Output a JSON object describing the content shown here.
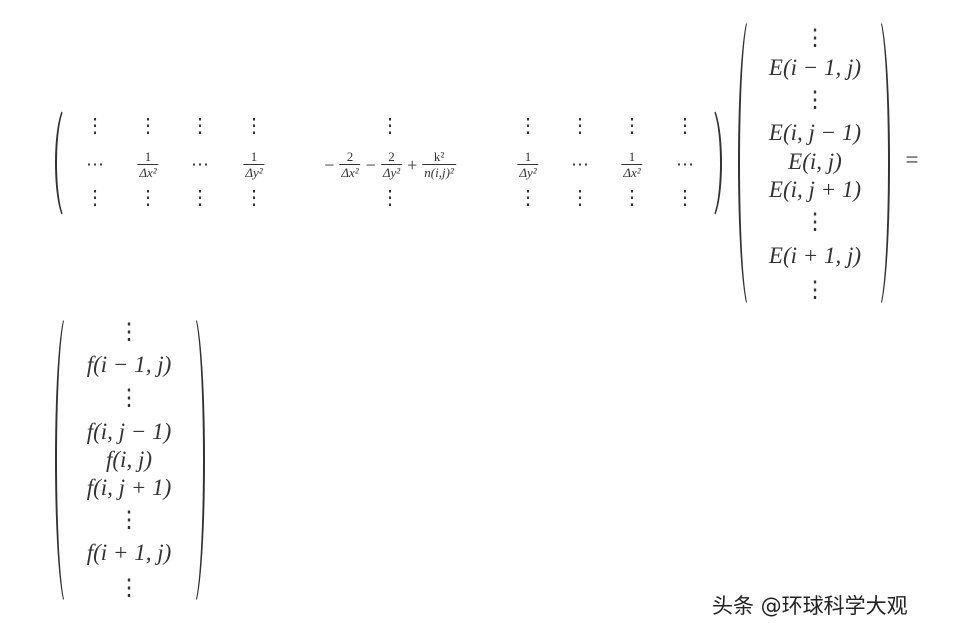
{
  "matrix": {
    "dots_columns": [
      "⋮",
      "⋮",
      "⋮",
      "⋮",
      "⋮",
      "⋮",
      "⋮",
      "⋮",
      "⋮"
    ],
    "middle_row": [
      {
        "text": "⋯"
      },
      {
        "frac": [
          "1",
          "Δx²"
        ]
      },
      {
        "text": "⋯"
      },
      {
        "frac": [
          "1",
          "Δy²"
        ]
      },
      {
        "parts": [
          {
            "text": "−"
          },
          {
            "frac": [
              "2",
              "Δx²"
            ]
          },
          {
            "text": "−"
          },
          {
            "frac": [
              "2",
              "Δy²"
            ]
          },
          {
            "text": "+"
          },
          {
            "frac": [
              "k²",
              "n(i,j)²"
            ]
          }
        ]
      },
      {
        "frac": [
          "1",
          "Δy²"
        ]
      },
      {
        "text": "⋯"
      },
      {
        "frac": [
          "1",
          "Δx²"
        ]
      },
      {
        "text": "⋯"
      }
    ]
  },
  "vector_E": [
    "⋮",
    "E(i − 1, j)",
    "⋮",
    "E(i, j − 1)",
    "E(i, j)",
    "E(i, j + 1)",
    "⋮",
    "E(i + 1, j)",
    "⋮"
  ],
  "equals": "=",
  "vector_f": [
    "⋮",
    "f(i − 1, j)",
    "⋮",
    "f(i, j − 1)",
    "f(i, j)",
    "f(i, j + 1)",
    "⋮",
    "f(i + 1, j)",
    "⋮"
  ],
  "watermark": "头条 @环球科学大观"
}
